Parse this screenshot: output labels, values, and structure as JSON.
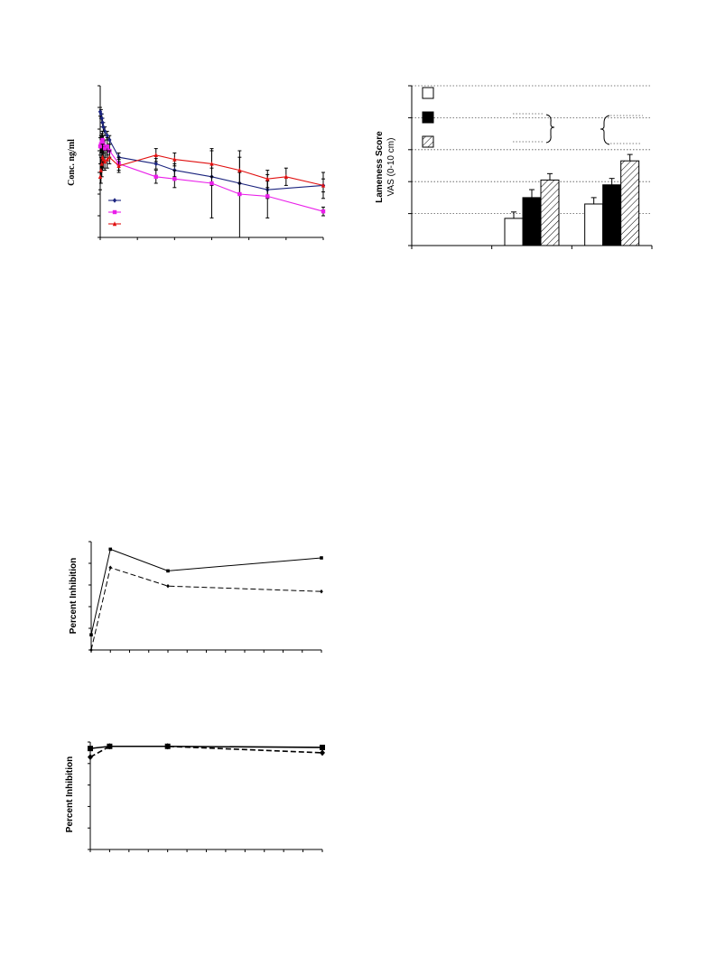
{
  "chart_data": [
    {
      "id": "pk",
      "type": "line",
      "title": "",
      "ylabel": "Conc. ng/ml",
      "xlabel": "",
      "xlim": [
        0,
        24
      ],
      "ylim": [
        0,
        3.5
      ],
      "series": [
        {
          "color": "#1a237e",
          "marker": "diamond",
          "line": "solid",
          "x": [
            0,
            0.08,
            0.17,
            0.25,
            0.33,
            0.5,
            0.75,
            1,
            2,
            6,
            8,
            12,
            15,
            18,
            24
          ],
          "y": [
            2.9,
            2.85,
            2.75,
            2.65,
            2.55,
            2.45,
            2.35,
            2.25,
            1.85,
            1.7,
            1.55,
            1.4,
            1.25,
            1.1,
            1.2
          ],
          "err": [
            0.1,
            0.1,
            0.1,
            0.1,
            0.1,
            0.1,
            0.1,
            0.1,
            0.1,
            0.12,
            0.15,
            0.2,
            0.25,
            0.2,
            0.15
          ]
        },
        {
          "color": "#e91ee9",
          "marker": "square",
          "line": "solid",
          "x": [
            0,
            0.08,
            0.17,
            0.25,
            0.33,
            0.5,
            0.75,
            1,
            2,
            6,
            8,
            12,
            15,
            18,
            24
          ],
          "y": [
            2.1,
            2.15,
            2.2,
            2.25,
            2.15,
            2.05,
            2.1,
            2.0,
            1.7,
            1.4,
            1.35,
            1.25,
            1.0,
            0.95,
            0.6
          ],
          "err": [
            0.2,
            0.2,
            0.2,
            0.2,
            0.2,
            0.2,
            0.2,
            0.15,
            0.15,
            0.15,
            0.2,
            0.8,
            1.0,
            0.5,
            0.1
          ]
        },
        {
          "color": "#e01010",
          "marker": "triangle",
          "line": "solid",
          "x": [
            0,
            0.08,
            0.17,
            0.25,
            0.33,
            0.5,
            0.75,
            1,
            2,
            6,
            8,
            12,
            15,
            18,
            20,
            24
          ],
          "y": [
            1.4,
            1.55,
            1.7,
            1.85,
            1.8,
            1.75,
            1.8,
            1.85,
            1.65,
            1.9,
            1.8,
            1.7,
            1.55,
            1.35,
            1.4,
            1.2
          ],
          "err": [
            0.3,
            0.3,
            0.3,
            0.3,
            0.2,
            0.2,
            0.2,
            0.15,
            0.15,
            0.15,
            0.15,
            0.3,
            0.3,
            0.2,
            0.2,
            0.3
          ]
        }
      ]
    },
    {
      "id": "lameness",
      "type": "bar",
      "title": "",
      "ylabel": "Lameness Score",
      "ylabel2": "VAS (0-10 cm)",
      "xlabel": "",
      "categories": [
        "",
        "",
        ""
      ],
      "ylim": [
        0,
        5
      ],
      "series": [
        {
          "fill": "white",
          "values": [
            0,
            0.85,
            1.3
          ],
          "err": [
            0,
            0.2,
            0.2
          ]
        },
        {
          "fill": "black",
          "values": [
            0,
            1.5,
            1.9
          ],
          "err": [
            0,
            0.25,
            0.2
          ]
        },
        {
          "fill": "hatch",
          "values": [
            0,
            2.05,
            2.65
          ],
          "err": [
            0,
            0.2,
            0.2
          ]
        }
      ]
    },
    {
      "id": "inhib1",
      "type": "line",
      "title": "",
      "ylabel": "Percent Inhibition",
      "xlabel": "",
      "xlim": [
        0,
        24
      ],
      "ylim": [
        0,
        100
      ],
      "series": [
        {
          "marker": "square",
          "line": "solid",
          "x": [
            0,
            2,
            8,
            24
          ],
          "y": [
            14,
            93,
            73,
            85
          ]
        },
        {
          "marker": "diamond",
          "line": "dashed",
          "x": [
            0,
            2,
            8,
            24
          ],
          "y": [
            0,
            76,
            59,
            54
          ]
        }
      ]
    },
    {
      "id": "inhib2",
      "type": "line",
      "title": "",
      "ylabel": "Percent Inhibition",
      "xlabel": "",
      "xlim": [
        0,
        24
      ],
      "ylim": [
        0,
        100
      ],
      "series": [
        {
          "marker": "square",
          "line": "solid",
          "x": [
            0,
            2,
            8,
            24
          ],
          "y": [
            94,
            96,
            96,
            95
          ]
        },
        {
          "marker": "diamond",
          "line": "dashed",
          "x": [
            0,
            2,
            8,
            24
          ],
          "y": [
            86,
            96,
            96,
            90
          ]
        }
      ]
    }
  ]
}
